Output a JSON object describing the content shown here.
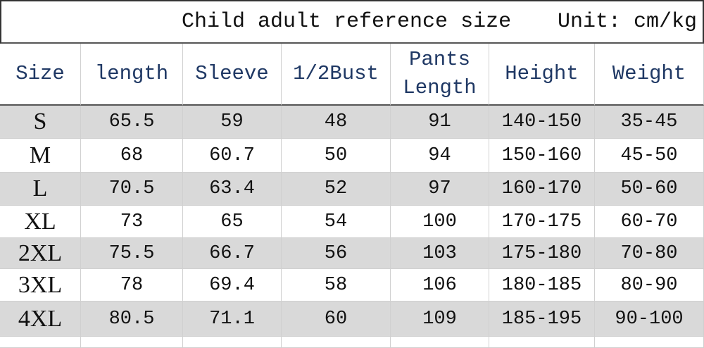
{
  "title": "Child adult reference size",
  "unit": "Unit: cm/kg",
  "table": {
    "header": [
      "Size",
      "length",
      "Sleeve",
      "1/2Bust",
      "Pants Length",
      "Height",
      "Weight"
    ],
    "rows": [
      [
        "S",
        "65.5",
        "59",
        "48",
        "91",
        "140-150",
        "35-45"
      ],
      [
        "M",
        "68",
        "60.7",
        "50",
        "94",
        "150-160",
        "45-50"
      ],
      [
        "L",
        "70.5",
        "63.4",
        "52",
        "97",
        "160-170",
        "50-60"
      ],
      [
        "XL",
        "73",
        "65",
        "54",
        "100",
        "170-175",
        "60-70"
      ],
      [
        "2XL",
        "75.5",
        "66.7",
        "56",
        "103",
        "175-180",
        "70-80"
      ],
      [
        "3XL",
        "78",
        "69.4",
        "58",
        "106",
        "180-185",
        "80-90"
      ],
      [
        "4XL",
        "80.5",
        "71.1",
        "60",
        "109",
        "185-195",
        "90-100"
      ]
    ]
  }
}
